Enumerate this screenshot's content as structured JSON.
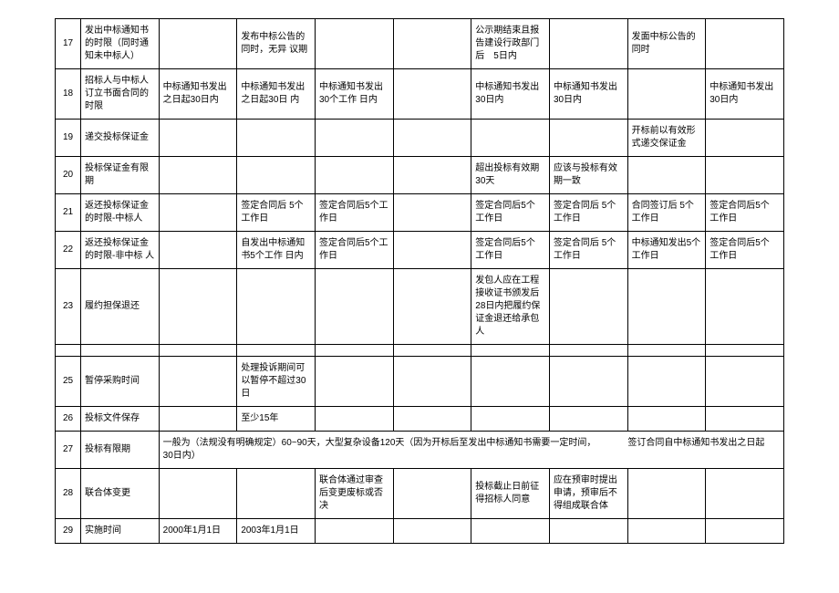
{
  "table": {
    "rows": [
      {
        "num": "17",
        "c1": "发出中标通知书的时限（同时通知未中标人）",
        "c2": "",
        "c3": "发布中标公告的同时，无异 议期",
        "c4": "",
        "c5": "",
        "c6": "公示期结束且报告建设行政部门后　5日内",
        "c7": "",
        "c8": "发面中标公告的 同时",
        "c9": ""
      },
      {
        "num": "18",
        "c1": "招标人与中标人订立书面合同的 时限",
        "c2": "中标通知书发出之日起30日内",
        "c3": "中标通知书发出之日起30日 内",
        "c4": "中标通知书发出30个工作 日内",
        "c5": "",
        "c6": "中标通知书发出　30日内",
        "c7": "中标通知书发出30日内",
        "c8": "",
        "c9": "中标通知书发出30日内"
      },
      {
        "num": "19",
        "c1": "递交投标保证金",
        "c2": "",
        "c3": "",
        "c4": "",
        "c5": "",
        "c6": "",
        "c7": "",
        "c8": "开标前以有效形式递交保证金",
        "c9": ""
      },
      {
        "num": "20",
        "c1": "投标保证金有限期",
        "c2": "",
        "c3": "",
        "c4": "",
        "c5": "",
        "c6": "超出投标有效期　30天",
        "c7": "应该与投标有效期一致",
        "c8": "",
        "c9": ""
      },
      {
        "num": "21",
        "c1": "返还投标保证金的时限-中标人",
        "c2": "",
        "c3": "签定合同后 5个工作日",
        "c4": "签定合同后5个工作日",
        "c5": "",
        "c6": "签定合同后5个 工作日",
        "c7": "签定合同后 5个工作日",
        "c8": "合同签订后 5个工作日",
        "c9": "签定合同后5个 工作日"
      },
      {
        "num": "22",
        "c1": "返还投标保证金的时限-非中标 人",
        "c2": "",
        "c3": "自发出中标通知书5个工作 日内",
        "c4": "签定合同后5个工作日",
        "c5": "",
        "c6": "签定合同后5个 工作日",
        "c7": "签定合同后 5个工作日",
        "c8": "中标通知发出5个工作日",
        "c9": "签定合同后5个 工作日"
      },
      {
        "num": "23",
        "c1": "履约担保退还",
        "c2": "",
        "c3": "",
        "c4": "",
        "c5": "",
        "c6": "发包人应在工程接收证书颁发后28日内把履约保证金退还给承包人",
        "c7": "",
        "c8": "",
        "c9": ""
      },
      {
        "num": "",
        "c1": "",
        "c2": "",
        "c3": "",
        "c4": "",
        "c5": "",
        "c6": "",
        "c7": "",
        "c8": "",
        "c9": ""
      },
      {
        "num": "25",
        "c1": "暂停采购时间",
        "c2": "",
        "c3": "处理投诉期间可以暂停不超过30日",
        "c4": "",
        "c5": "",
        "c6": "",
        "c7": "",
        "c8": "",
        "c9": ""
      },
      {
        "num": "26",
        "c1": "投标文件保存",
        "c2": "",
        "c3": "至少15年",
        "c4": "",
        "c5": "",
        "c6": "",
        "c7": "",
        "c8": "",
        "c9": ""
      },
      {
        "num": "27",
        "c1": "投标有限期",
        "span": "一般为（法规没有明确规定）60~90天，大型复杂设备120天（因为开标后至发出中标通知书需要一定时间，　　　　签订合同自中标通知书发出之日起　　30日内）"
      },
      {
        "num": "28",
        "c1": "联合体变更",
        "c2": "",
        "c3": "",
        "c4": "联合体通过审查后变更废标或否决",
        "c5": "",
        "c6": "投标截止日前征得招标人同意",
        "c7": "应在预审时提出申请，预审后不得组成联合体",
        "c8": "",
        "c9": ""
      },
      {
        "num": "29",
        "c1": "实施时间",
        "c2": "2000年1月1日",
        "c3": "2003年1月1日",
        "c4": "",
        "c5": "",
        "c6": "",
        "c7": "",
        "c8": "",
        "c9": ""
      }
    ]
  }
}
